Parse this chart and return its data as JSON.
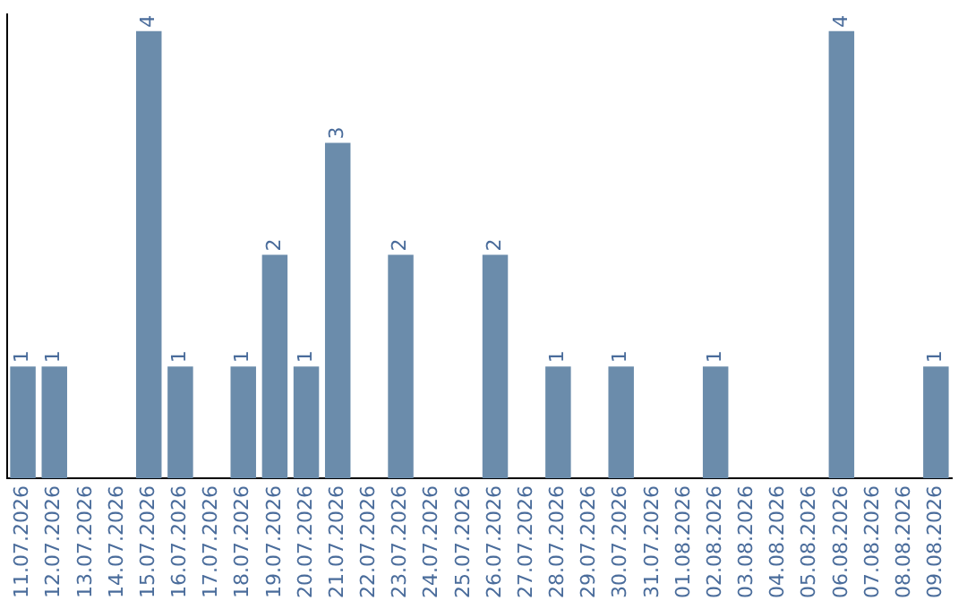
{
  "chart_data": {
    "type": "bar",
    "categories": [
      "11.07.2026",
      "12.07.2026",
      "13.07.2026",
      "14.07.2026",
      "15.07.2026",
      "16.07.2026",
      "17.07.2026",
      "18.07.2026",
      "19.07.2026",
      "20.07.2026",
      "21.07.2026",
      "22.07.2026",
      "23.07.2026",
      "24.07.2026",
      "25.07.2026",
      "26.07.2026",
      "27.07.2026",
      "28.07.2026",
      "29.07.2026",
      "30.07.2026",
      "31.07.2026",
      "01.08.2026",
      "02.08.2026",
      "03.08.2026",
      "04.08.2026",
      "05.08.2026",
      "06.08.2026",
      "07.08.2026",
      "08.08.2026",
      "09.08.2026"
    ],
    "values": [
      1,
      1,
      0,
      0,
      4,
      1,
      0,
      1,
      2,
      1,
      3,
      0,
      2,
      0,
      0,
      2,
      0,
      1,
      0,
      1,
      0,
      0,
      1,
      0,
      0,
      0,
      4,
      0,
      0,
      1
    ],
    "value_labels": [
      "1",
      "1",
      null,
      null,
      "4",
      "1",
      null,
      "1",
      "2",
      "1",
      "3",
      null,
      "2",
      null,
      null,
      "2",
      null,
      "1",
      null,
      "1",
      null,
      null,
      "1",
      null,
      null,
      null,
      "4",
      null,
      null,
      "1"
    ],
    "color": "#6b8cab",
    "ylim": [
      0,
      4.15
    ],
    "tick_labels": "x",
    "grid": false,
    "legend": false
  }
}
